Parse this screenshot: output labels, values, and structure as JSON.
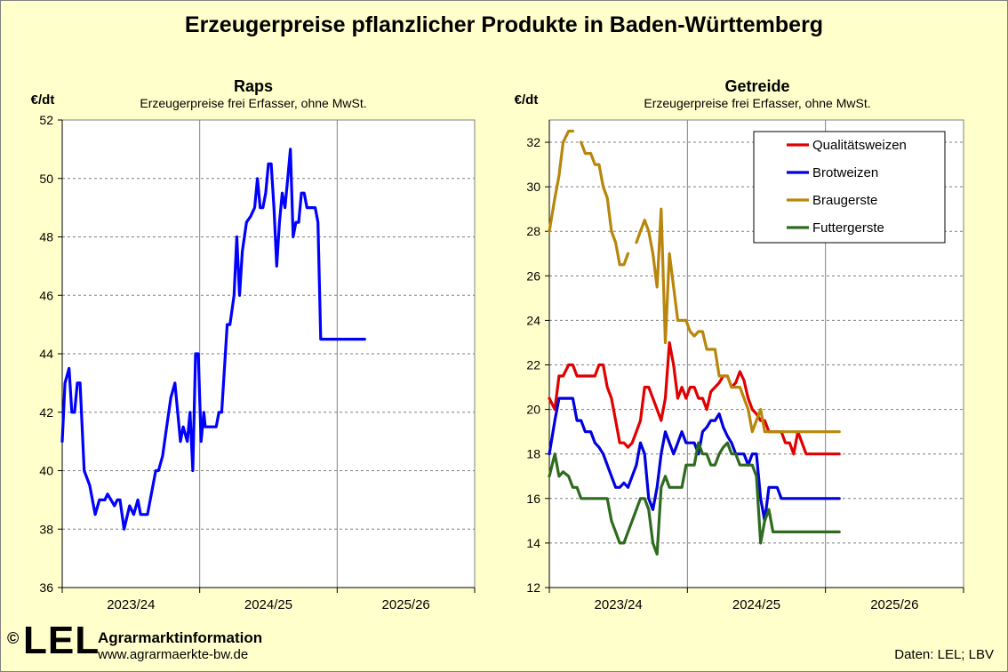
{
  "title": "Erzeugerpreise pflanzlicher Produkte in Baden-Württemberg",
  "footer": {
    "copyright": "©",
    "logo": "LEL",
    "org_name": "Agrarmarktinformation",
    "url": "www.agrarmaerkte-bw.de",
    "source": "Daten: LEL; LBV"
  },
  "chart_data": [
    {
      "type": "line",
      "title": "Raps",
      "subtitle": "Erzeugerpreise frei Erfasser, ohne MwSt.",
      "ylabel": "€/dt",
      "ylim": [
        36,
        52
      ],
      "yticks": [
        36,
        38,
        40,
        42,
        44,
        46,
        48,
        50,
        52
      ],
      "xlim": [
        0,
        3
      ],
      "periods": [
        "2023/24",
        "2024/25",
        "2025/26"
      ],
      "grid": true,
      "series": [
        {
          "color": "#0000ff",
          "x": [
            0.0,
            0.02,
            0.05,
            0.07,
            0.09,
            0.11,
            0.13,
            0.16,
            0.2,
            0.24,
            0.27,
            0.29,
            0.31,
            0.33,
            0.38,
            0.4,
            0.42,
            0.45,
            0.49,
            0.52,
            0.55,
            0.57,
            0.59,
            0.62,
            0.64,
            0.68,
            0.7,
            0.73,
            0.76,
            0.79,
            0.82,
            0.84,
            0.86,
            0.88,
            0.91,
            0.93,
            0.95,
            0.97,
            0.99,
            1.01,
            1.02,
            1.03,
            1.04,
            1.06,
            1.08,
            1.1,
            1.12,
            1.14,
            1.16,
            1.18,
            1.2,
            1.22,
            1.25,
            1.27,
            1.29,
            1.31,
            1.34,
            1.37,
            1.4,
            1.42,
            1.44,
            1.46,
            1.48,
            1.5,
            1.52,
            1.54,
            1.56,
            1.58,
            1.6,
            1.62,
            1.64,
            1.66,
            1.68,
            1.7,
            1.72,
            1.74,
            1.76,
            1.78,
            1.8,
            1.82,
            1.84,
            1.86,
            1.88,
            1.9,
            1.92,
            1.94,
            1.96,
            1.98,
            2.0,
            2.02,
            2.05,
            2.08,
            2.1,
            2.13,
            2.16,
            2.2
          ],
          "y": [
            41.0,
            43.0,
            43.5,
            42.0,
            42.0,
            43.0,
            43.0,
            40.0,
            39.5,
            38.5,
            39.0,
            39.0,
            39.0,
            39.2,
            38.8,
            39.0,
            39.0,
            38.0,
            38.8,
            38.5,
            39.0,
            38.5,
            38.5,
            38.5,
            39.0,
            40.0,
            40.0,
            40.5,
            41.5,
            42.5,
            43.0,
            42.0,
            41.0,
            41.5,
            41.0,
            42.0,
            40.0,
            44.0,
            44.0,
            41.0,
            41.5,
            42.0,
            41.5,
            41.5,
            41.5,
            41.5,
            41.5,
            42.0,
            42.0,
            43.5,
            45.0,
            45.0,
            46.0,
            48.0,
            46.0,
            47.5,
            48.5,
            48.7,
            49.0,
            50.0,
            49.0,
            49.0,
            49.5,
            50.5,
            50.5,
            49.0,
            47.0,
            48.5,
            49.5,
            49.0,
            50.0,
            51.0,
            48.0,
            48.5,
            48.5,
            49.5,
            49.5,
            49.0,
            49.0,
            49.0,
            49.0,
            48.5,
            44.5,
            44.5,
            44.5,
            44.5,
            44.5,
            44.5,
            44.5,
            44.5,
            44.5,
            44.5,
            44.5,
            44.5,
            44.5,
            44.5
          ]
        }
      ]
    },
    {
      "type": "line",
      "title": "Getreide",
      "subtitle": "Erzeugerpreise frei Erfasser, ohne MwSt.",
      "ylabel": "€/dt",
      "ylim": [
        12,
        33
      ],
      "yticks": [
        12,
        14,
        16,
        18,
        20,
        22,
        24,
        26,
        28,
        30,
        32
      ],
      "xlim": [
        0,
        3
      ],
      "periods": [
        "2023/24",
        "2024/25",
        "2025/26"
      ],
      "grid": true,
      "legend_position": "top-right",
      "series": [
        {
          "name": "Qualitätsweizen",
          "color": "#e00000",
          "x": [
            0.0,
            0.04,
            0.07,
            0.1,
            0.14,
            0.17,
            0.2,
            0.23,
            0.26,
            0.3,
            0.33,
            0.36,
            0.39,
            0.42,
            0.45,
            0.48,
            0.51,
            0.54,
            0.57,
            0.6,
            0.63,
            0.66,
            0.69,
            0.72,
            0.75,
            0.78,
            0.81,
            0.84,
            0.87,
            0.9,
            0.93,
            0.96,
            0.99,
            1.02,
            1.05,
            1.08,
            1.11,
            1.14,
            1.17,
            1.2,
            1.23,
            1.26,
            1.29,
            1.32,
            1.35,
            1.38,
            1.41,
            1.44,
            1.47,
            1.5,
            1.53,
            1.56,
            1.59,
            1.62,
            1.65,
            1.68,
            1.71,
            1.74,
            1.77,
            1.8,
            1.83,
            1.86,
            1.89,
            1.92,
            1.95,
            1.98,
            2.01,
            2.04,
            2.07,
            2.1
          ],
          "y": [
            20.5,
            20.0,
            21.5,
            21.5,
            22.0,
            22.0,
            21.5,
            21.5,
            21.5,
            21.5,
            21.5,
            22.0,
            22.0,
            21.0,
            20.5,
            19.5,
            18.5,
            18.5,
            18.3,
            18.5,
            19.0,
            19.5,
            21.0,
            21.0,
            20.5,
            20.0,
            19.5,
            20.5,
            23.0,
            22.0,
            20.5,
            21.0,
            20.5,
            21.0,
            21.0,
            20.5,
            20.5,
            20.0,
            20.8,
            21.0,
            21.2,
            21.5,
            21.5,
            21.0,
            21.2,
            21.7,
            21.3,
            20.5,
            20.0,
            19.8,
            19.5,
            19.5,
            19.0,
            19.0,
            19.0,
            19.0,
            18.5,
            18.5,
            18.0,
            19.0,
            18.5,
            18.0,
            18.0,
            18.0,
            18.0,
            18.0,
            18.0,
            18.0,
            18.0,
            18.0
          ]
        },
        {
          "name": "Brotweizen",
          "color": "#0000e0",
          "x": [
            0.0,
            0.04,
            0.07,
            0.1,
            0.14,
            0.17,
            0.2,
            0.23,
            0.26,
            0.3,
            0.33,
            0.36,
            0.39,
            0.42,
            0.45,
            0.48,
            0.51,
            0.54,
            0.57,
            0.6,
            0.63,
            0.66,
            0.69,
            0.72,
            0.75,
            0.78,
            0.81,
            0.84,
            0.87,
            0.9,
            0.93,
            0.96,
            0.99,
            1.02,
            1.05,
            1.08,
            1.11,
            1.14,
            1.17,
            1.2,
            1.23,
            1.26,
            1.29,
            1.32,
            1.35,
            1.38,
            1.41,
            1.44,
            1.47,
            1.5,
            1.53,
            1.56,
            1.59,
            1.62,
            1.65,
            1.68,
            1.71,
            1.74,
            1.77,
            1.8,
            1.83,
            1.86,
            1.89,
            1.92,
            1.95,
            1.98,
            2.01,
            2.04,
            2.07,
            2.1
          ],
          "y": [
            18.0,
            19.5,
            20.5,
            20.5,
            20.5,
            20.5,
            19.5,
            19.5,
            19.0,
            19.0,
            18.5,
            18.3,
            18.0,
            17.5,
            17.0,
            16.5,
            16.5,
            16.7,
            16.5,
            17.0,
            17.5,
            18.5,
            18.0,
            16.0,
            15.5,
            16.5,
            18.0,
            19.0,
            18.5,
            18.0,
            18.5,
            19.0,
            18.5,
            18.5,
            18.5,
            18.0,
            19.0,
            19.2,
            19.5,
            19.5,
            19.8,
            19.2,
            18.8,
            18.5,
            18.0,
            18.0,
            18.0,
            17.5,
            18.0,
            18.0,
            16.0,
            15.0,
            16.5,
            16.5,
            16.5,
            16.0,
            16.0,
            16.0,
            16.0,
            16.0,
            16.0,
            16.0,
            16.0,
            16.0,
            16.0,
            16.0,
            16.0,
            16.0,
            16.0,
            16.0
          ]
        },
        {
          "name": "Braugerste",
          "color": "#b8860b",
          "x": [
            0.0,
            0.04,
            0.07,
            0.1,
            0.14,
            0.17,
            0.2,
            0.23,
            0.26,
            0.3,
            0.33,
            0.36,
            0.39,
            0.42,
            0.45,
            0.48,
            0.51,
            0.54,
            0.57,
            0.6,
            0.63,
            0.66,
            0.69,
            0.72,
            0.75,
            0.78,
            0.81,
            0.84,
            0.87,
            0.9,
            0.93,
            0.96,
            0.99,
            1.02,
            1.05,
            1.08,
            1.11,
            1.14,
            1.17,
            1.2,
            1.23,
            1.26,
            1.29,
            1.32,
            1.35,
            1.38,
            1.41,
            1.44,
            1.47,
            1.5,
            1.53,
            1.56,
            1.59,
            1.62,
            1.65,
            1.68,
            1.71,
            1.74,
            1.77,
            1.8,
            1.83,
            1.86,
            1.89,
            1.92,
            1.95,
            1.98,
            2.01,
            2.04,
            2.07,
            2.1
          ],
          "y": [
            28.0,
            29.5,
            30.5,
            32.0,
            32.5,
            32.5,
            null,
            32.0,
            31.5,
            31.5,
            31.0,
            31.0,
            30.0,
            29.5,
            28.0,
            27.5,
            26.5,
            26.5,
            27.0,
            null,
            27.5,
            28.0,
            28.5,
            28.0,
            27.0,
            25.5,
            29.0,
            23.0,
            27.0,
            25.5,
            24.0,
            24.0,
            24.0,
            23.5,
            23.3,
            23.5,
            23.5,
            22.7,
            22.7,
            22.7,
            21.5,
            21.5,
            21.5,
            21.0,
            21.0,
            21.0,
            20.5,
            20.0,
            19.0,
            19.5,
            20.0,
            19.0,
            19.0,
            19.0,
            19.0,
            19.0,
            19.0,
            19.0,
            19.0,
            19.0,
            19.0,
            19.0,
            19.0,
            19.0,
            19.0,
            19.0,
            19.0,
            19.0,
            19.0,
            19.0
          ]
        },
        {
          "name": "Futtergerste",
          "color": "#2e6b1e",
          "x": [
            0.0,
            0.04,
            0.07,
            0.1,
            0.14,
            0.17,
            0.2,
            0.23,
            0.26,
            0.3,
            0.33,
            0.36,
            0.39,
            0.42,
            0.45,
            0.48,
            0.51,
            0.54,
            0.57,
            0.6,
            0.63,
            0.66,
            0.69,
            0.72,
            0.75,
            0.78,
            0.81,
            0.84,
            0.87,
            0.9,
            0.93,
            0.96,
            0.99,
            1.02,
            1.05,
            1.08,
            1.11,
            1.14,
            1.17,
            1.2,
            1.23,
            1.26,
            1.29,
            1.32,
            1.35,
            1.38,
            1.41,
            1.44,
            1.47,
            1.5,
            1.53,
            1.56,
            1.59,
            1.62,
            1.65,
            1.68,
            1.71,
            1.74,
            1.77,
            1.8,
            1.83,
            1.86,
            1.89,
            1.92,
            1.95,
            1.98,
            2.01,
            2.04,
            2.07,
            2.1
          ],
          "y": [
            17.0,
            18.0,
            17.0,
            17.2,
            17.0,
            16.5,
            16.5,
            16.0,
            16.0,
            16.0,
            16.0,
            16.0,
            16.0,
            16.0,
            15.0,
            14.5,
            14.0,
            14.0,
            14.5,
            15.0,
            15.5,
            16.0,
            16.0,
            15.5,
            14.0,
            13.5,
            16.5,
            17.0,
            16.5,
            16.5,
            16.5,
            16.5,
            17.5,
            17.5,
            17.5,
            18.5,
            18.0,
            18.0,
            17.5,
            17.5,
            18.0,
            18.3,
            18.5,
            18.0,
            18.0,
            17.5,
            17.5,
            17.5,
            17.5,
            17.0,
            14.0,
            15.0,
            15.5,
            14.5,
            14.5,
            14.5,
            14.5,
            14.5,
            14.5,
            14.5,
            14.5,
            14.5,
            14.5,
            14.5,
            14.5,
            14.5,
            14.5,
            14.5,
            14.5,
            14.5
          ]
        }
      ]
    }
  ]
}
